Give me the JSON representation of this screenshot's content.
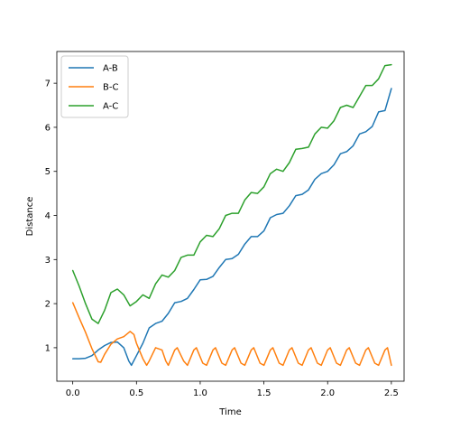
{
  "chart_data": {
    "type": "line",
    "xlabel": "Time",
    "ylabel": "Distance",
    "xlim": [
      -0.125,
      2.6
    ],
    "ylim": [
      0.24,
      7.72
    ],
    "xticks": [
      0.0,
      0.5,
      1.0,
      1.5,
      2.0,
      2.5
    ],
    "xtick_labels": [
      "0.0",
      "0.5",
      "1.0",
      "1.5",
      "2.0",
      "2.5"
    ],
    "yticks": [
      1,
      2,
      3,
      4,
      5,
      6,
      7
    ],
    "ytick_labels": [
      "1",
      "2",
      "3",
      "4",
      "5",
      "6",
      "7"
    ],
    "grid": false,
    "legend_position": "top-left",
    "series": [
      {
        "name": "A-B",
        "color": "#1f77b4",
        "points": [
          [
            0.0,
            0.75
          ],
          [
            0.05,
            0.75
          ],
          [
            0.1,
            0.76
          ],
          [
            0.15,
            0.82
          ],
          [
            0.2,
            0.95
          ],
          [
            0.25,
            1.05
          ],
          [
            0.3,
            1.12
          ],
          [
            0.35,
            1.13
          ],
          [
            0.4,
            1.0
          ],
          [
            0.44,
            0.7
          ],
          [
            0.46,
            0.6
          ],
          [
            0.5,
            0.82
          ],
          [
            0.55,
            1.1
          ],
          [
            0.6,
            1.45
          ],
          [
            0.65,
            1.55
          ],
          [
            0.7,
            1.6
          ],
          [
            0.75,
            1.78
          ],
          [
            0.8,
            2.02
          ],
          [
            0.85,
            2.05
          ],
          [
            0.9,
            2.12
          ],
          [
            0.95,
            2.32
          ],
          [
            1.0,
            2.54
          ],
          [
            1.05,
            2.55
          ],
          [
            1.1,
            2.62
          ],
          [
            1.15,
            2.82
          ],
          [
            1.2,
            3.0
          ],
          [
            1.25,
            3.02
          ],
          [
            1.3,
            3.12
          ],
          [
            1.35,
            3.35
          ],
          [
            1.4,
            3.52
          ],
          [
            1.45,
            3.52
          ],
          [
            1.5,
            3.65
          ],
          [
            1.55,
            3.95
          ],
          [
            1.6,
            4.02
          ],
          [
            1.65,
            4.05
          ],
          [
            1.7,
            4.22
          ],
          [
            1.75,
            4.45
          ],
          [
            1.8,
            4.48
          ],
          [
            1.85,
            4.58
          ],
          [
            1.9,
            4.82
          ],
          [
            1.95,
            4.95
          ],
          [
            2.0,
            5.0
          ],
          [
            2.05,
            5.15
          ],
          [
            2.1,
            5.4
          ],
          [
            2.15,
            5.45
          ],
          [
            2.2,
            5.58
          ],
          [
            2.25,
            5.85
          ],
          [
            2.3,
            5.9
          ],
          [
            2.35,
            6.02
          ],
          [
            2.4,
            6.35
          ],
          [
            2.45,
            6.38
          ],
          [
            2.5,
            6.88
          ]
        ]
      },
      {
        "name": "B-C",
        "color": "#ff7f0e",
        "points": [
          [
            0.0,
            2.02
          ],
          [
            0.05,
            1.68
          ],
          [
            0.1,
            1.35
          ],
          [
            0.15,
            0.98
          ],
          [
            0.2,
            0.68
          ],
          [
            0.22,
            0.67
          ],
          [
            0.25,
            0.85
          ],
          [
            0.3,
            1.08
          ],
          [
            0.35,
            1.2
          ],
          [
            0.4,
            1.25
          ],
          [
            0.45,
            1.37
          ],
          [
            0.48,
            1.3
          ],
          [
            0.5,
            1.1
          ],
          [
            0.55,
            0.75
          ],
          [
            0.58,
            0.6
          ],
          [
            0.6,
            0.7
          ],
          [
            0.65,
            1.0
          ],
          [
            0.7,
            0.95
          ],
          [
            0.73,
            0.7
          ],
          [
            0.75,
            0.6
          ],
          [
            0.8,
            0.95
          ],
          [
            0.82,
            1.0
          ],
          [
            0.87,
            0.7
          ],
          [
            0.9,
            0.6
          ],
          [
            0.95,
            0.95
          ],
          [
            0.97,
            1.0
          ],
          [
            1.02,
            0.65
          ],
          [
            1.05,
            0.6
          ],
          [
            1.1,
            0.95
          ],
          [
            1.12,
            1.0
          ],
          [
            1.17,
            0.65
          ],
          [
            1.2,
            0.6
          ],
          [
            1.25,
            0.95
          ],
          [
            1.27,
            1.0
          ],
          [
            1.32,
            0.65
          ],
          [
            1.35,
            0.6
          ],
          [
            1.4,
            0.95
          ],
          [
            1.42,
            1.0
          ],
          [
            1.47,
            0.65
          ],
          [
            1.5,
            0.6
          ],
          [
            1.55,
            0.95
          ],
          [
            1.57,
            1.0
          ],
          [
            1.62,
            0.65
          ],
          [
            1.65,
            0.6
          ],
          [
            1.7,
            0.95
          ],
          [
            1.72,
            1.0
          ],
          [
            1.77,
            0.65
          ],
          [
            1.8,
            0.6
          ],
          [
            1.85,
            0.95
          ],
          [
            1.87,
            1.0
          ],
          [
            1.92,
            0.65
          ],
          [
            1.95,
            0.6
          ],
          [
            2.0,
            0.95
          ],
          [
            2.02,
            1.0
          ],
          [
            2.07,
            0.65
          ],
          [
            2.1,
            0.6
          ],
          [
            2.15,
            0.95
          ],
          [
            2.17,
            1.0
          ],
          [
            2.22,
            0.65
          ],
          [
            2.25,
            0.6
          ],
          [
            2.3,
            0.95
          ],
          [
            2.32,
            1.0
          ],
          [
            2.37,
            0.65
          ],
          [
            2.4,
            0.6
          ],
          [
            2.45,
            0.95
          ],
          [
            2.47,
            1.0
          ],
          [
            2.5,
            0.6
          ]
        ]
      },
      {
        "name": "A-C",
        "color": "#2ca02c",
        "points": [
          [
            0.0,
            2.75
          ],
          [
            0.05,
            2.4
          ],
          [
            0.1,
            2.0
          ],
          [
            0.15,
            1.65
          ],
          [
            0.2,
            1.55
          ],
          [
            0.25,
            1.85
          ],
          [
            0.3,
            2.25
          ],
          [
            0.35,
            2.33
          ],
          [
            0.4,
            2.2
          ],
          [
            0.45,
            1.95
          ],
          [
            0.5,
            2.05
          ],
          [
            0.55,
            2.2
          ],
          [
            0.6,
            2.12
          ],
          [
            0.65,
            2.45
          ],
          [
            0.7,
            2.65
          ],
          [
            0.75,
            2.6
          ],
          [
            0.8,
            2.75
          ],
          [
            0.85,
            3.05
          ],
          [
            0.9,
            3.1
          ],
          [
            0.95,
            3.1
          ],
          [
            1.0,
            3.4
          ],
          [
            1.05,
            3.55
          ],
          [
            1.1,
            3.52
          ],
          [
            1.15,
            3.7
          ],
          [
            1.2,
            4.0
          ],
          [
            1.25,
            4.05
          ],
          [
            1.3,
            4.05
          ],
          [
            1.35,
            4.35
          ],
          [
            1.4,
            4.52
          ],
          [
            1.45,
            4.5
          ],
          [
            1.5,
            4.65
          ],
          [
            1.55,
            4.95
          ],
          [
            1.6,
            5.05
          ],
          [
            1.65,
            5.0
          ],
          [
            1.7,
            5.2
          ],
          [
            1.75,
            5.5
          ],
          [
            1.8,
            5.52
          ],
          [
            1.85,
            5.55
          ],
          [
            1.9,
            5.85
          ],
          [
            1.95,
            6.0
          ],
          [
            2.0,
            5.98
          ],
          [
            2.05,
            6.15
          ],
          [
            2.1,
            6.45
          ],
          [
            2.15,
            6.5
          ],
          [
            2.2,
            6.45
          ],
          [
            2.25,
            6.7
          ],
          [
            2.3,
            6.95
          ],
          [
            2.35,
            6.95
          ],
          [
            2.4,
            7.1
          ],
          [
            2.45,
            7.4
          ],
          [
            2.5,
            7.42
          ]
        ]
      }
    ]
  }
}
